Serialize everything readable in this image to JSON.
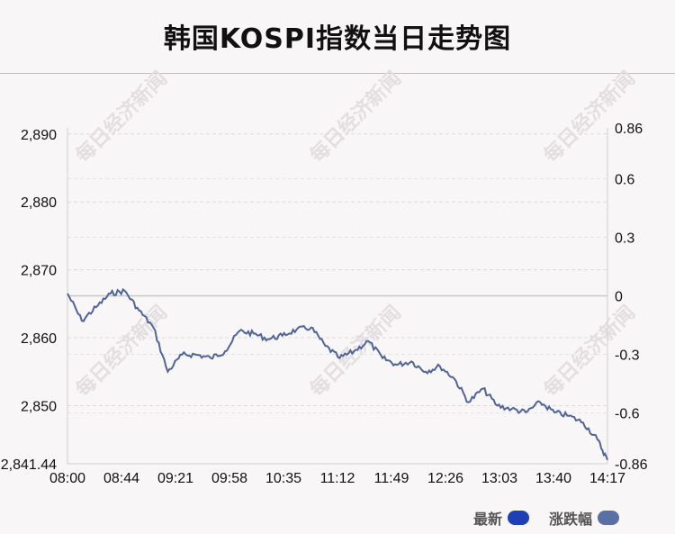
{
  "title": "韩国KOSPI指数当日走势图",
  "watermark": "每日经济新闻",
  "legend": [
    {
      "label": "最新",
      "color": "#1f3fb5"
    },
    {
      "label": "涨跌幅",
      "color": "#5a6fa6"
    }
  ],
  "chart_data": {
    "type": "line",
    "line_color": "#4f6597",
    "baseline_label": "0",
    "x_ticks": [
      "08:00",
      "08:44",
      "09:21",
      "09:58",
      "10:35",
      "11:12",
      "11:49",
      "12:26",
      "13:03",
      "13:40",
      "14:17"
    ],
    "y_left_ticks": [
      "2,841.44",
      "2,850",
      "2,860",
      "2,870",
      "2,880",
      "2,890"
    ],
    "y_left_tick_values": [
      2841.44,
      2850,
      2860,
      2870,
      2880,
      2890
    ],
    "y_right_ticks": [
      "-0.86",
      "-0.6",
      "-0.3",
      "0",
      "0.3",
      "0.6",
      "0.86"
    ],
    "y_right_tick_values": [
      -0.86,
      -0.6,
      -0.3,
      0,
      0.3,
      0.6,
      0.86
    ],
    "ylim": [
      2841.44,
      2890.9
    ],
    "x": [
      "08:00",
      "08:10",
      "08:20",
      "08:30",
      "08:40",
      "08:50",
      "09:00",
      "09:10",
      "09:20",
      "09:30",
      "09:40",
      "09:50",
      "10:00",
      "10:10",
      "10:20",
      "10:30",
      "10:40",
      "10:50",
      "11:00",
      "11:10",
      "11:20",
      "11:30",
      "11:40",
      "11:50",
      "12:00",
      "12:10",
      "12:20",
      "12:30",
      "12:40",
      "12:50",
      "13:00",
      "13:10",
      "13:20",
      "13:30",
      "13:40",
      "13:50",
      "14:00",
      "14:10",
      "14:17"
    ],
    "values": [
      2866.5,
      2862.5,
      2864.5,
      2866.5,
      2866.9,
      2864.0,
      2861.5,
      2855.0,
      2857.5,
      2857.5,
      2857.0,
      2858.0,
      2861.0,
      2860.6,
      2859.8,
      2860.3,
      2861.2,
      2861.5,
      2858.8,
      2857.0,
      2858.0,
      2859.5,
      2857.0,
      2856.0,
      2856.5,
      2855.0,
      2855.8,
      2854.0,
      2850.5,
      2852.5,
      2850.0,
      2849.5,
      2849.0,
      2850.5,
      2849.0,
      2848.5,
      2847.5,
      2845.0,
      2842.0
    ]
  }
}
